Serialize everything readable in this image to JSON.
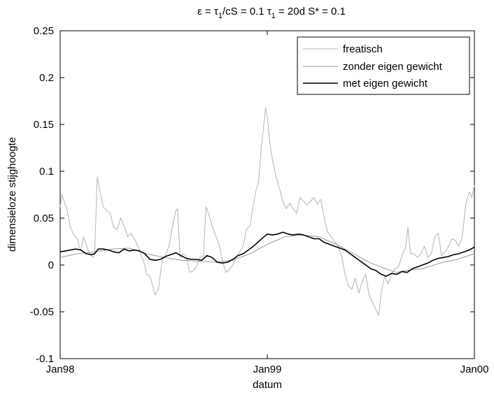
{
  "chart_data": {
    "type": "line",
    "title_parts": {
      "eps": "ε = τ",
      "eps_sub": "1",
      "eps_rest": "/cS = 0.1   τ",
      "tau_sub": "1",
      "tau_rest": " = 20d   S* = 0.1"
    },
    "xlabel": "datum",
    "ylabel": "dimensieloze stijghoogte",
    "x_ticks": [
      "Jan98",
      "Jan99",
      "Jan00"
    ],
    "xlim": [
      0,
      24
    ],
    "ylim": [
      -0.1,
      0.25
    ],
    "y_ticks": [
      -0.1,
      -0.05,
      0,
      0.05,
      0.1,
      0.15,
      0.2,
      0.25
    ],
    "y_tick_labels": [
      "-0.1",
      "-0.05",
      "0",
      "0.05",
      "0.1",
      "0.15",
      "0.2",
      "0.25"
    ],
    "x_unit": "months since Jan98",
    "grid": false,
    "legend_position": "top-right",
    "series": [
      {
        "name": "freatisch",
        "color": "#b4b4b4",
        "points": [
          [
            0.0,
            0.062
          ],
          [
            0.1,
            0.075
          ],
          [
            0.2,
            0.07
          ],
          [
            0.4,
            0.058
          ],
          [
            0.6,
            0.04
          ],
          [
            0.8,
            0.032
          ],
          [
            1.0,
            0.028
          ],
          [
            1.1,
            0.02
          ],
          [
            1.2,
            0.015
          ],
          [
            1.35,
            0.03
          ],
          [
            1.5,
            0.022
          ],
          [
            1.7,
            0.012
          ],
          [
            1.9,
            0.008
          ],
          [
            2.0,
            0.012
          ],
          [
            2.15,
            0.094
          ],
          [
            2.3,
            0.08
          ],
          [
            2.5,
            0.062
          ],
          [
            2.7,
            0.058
          ],
          [
            2.9,
            0.055
          ],
          [
            3.1,
            0.04
          ],
          [
            3.3,
            0.038
          ],
          [
            3.5,
            0.05
          ],
          [
            3.7,
            0.042
          ],
          [
            3.9,
            0.03
          ],
          [
            4.1,
            0.034
          ],
          [
            4.3,
            0.028
          ],
          [
            4.5,
            0.02
          ],
          [
            4.7,
            0.01
          ],
          [
            4.9,
            0.0
          ],
          [
            5.0,
            -0.01
          ],
          [
            5.2,
            -0.012
          ],
          [
            5.3,
            -0.018
          ],
          [
            5.5,
            -0.032
          ],
          [
            5.7,
            -0.025
          ],
          [
            5.9,
            0.004
          ],
          [
            6.1,
            0.01
          ],
          [
            6.3,
            0.02
          ],
          [
            6.5,
            0.04
          ],
          [
            6.7,
            0.058
          ],
          [
            6.8,
            0.06
          ],
          [
            6.95,
            0.008
          ],
          [
            7.1,
            0.012
          ],
          [
            7.3,
            0.01
          ],
          [
            7.5,
            -0.008
          ],
          [
            7.7,
            -0.006
          ],
          [
            7.9,
            -0.002
          ],
          [
            8.1,
            0.008
          ],
          [
            8.3,
            0.01
          ],
          [
            8.45,
            0.062
          ],
          [
            8.6,
            0.055
          ],
          [
            8.8,
            0.042
          ],
          [
            9.0,
            0.032
          ],
          [
            9.2,
            0.022
          ],
          [
            9.4,
            0.005
          ],
          [
            9.6,
            -0.008
          ],
          [
            9.8,
            -0.005
          ],
          [
            10.0,
            0.0
          ],
          [
            10.2,
            0.008
          ],
          [
            10.4,
            0.014
          ],
          [
            10.6,
            0.02
          ],
          [
            10.8,
            0.038
          ],
          [
            11.0,
            0.042
          ],
          [
            11.2,
            0.065
          ],
          [
            11.35,
            0.08
          ],
          [
            11.5,
            0.09
          ],
          [
            11.65,
            0.125
          ],
          [
            11.8,
            0.15
          ],
          [
            11.9,
            0.168
          ],
          [
            12.0,
            0.158
          ],
          [
            12.15,
            0.13
          ],
          [
            12.3,
            0.112
          ],
          [
            12.5,
            0.095
          ],
          [
            12.7,
            0.082
          ],
          [
            12.9,
            0.068
          ],
          [
            13.1,
            0.06
          ],
          [
            13.3,
            0.066
          ],
          [
            13.5,
            0.06
          ],
          [
            13.7,
            0.055
          ],
          [
            13.9,
            0.072
          ],
          [
            14.1,
            0.068
          ],
          [
            14.3,
            0.064
          ],
          [
            14.5,
            0.068
          ],
          [
            14.7,
            0.072
          ],
          [
            14.9,
            0.065
          ],
          [
            15.1,
            0.07
          ],
          [
            15.3,
            0.05
          ],
          [
            15.5,
            0.035
          ],
          [
            15.7,
            0.03
          ],
          [
            15.9,
            0.025
          ],
          [
            16.1,
            0.02
          ],
          [
            16.3,
            0.01
          ],
          [
            16.5,
            -0.01
          ],
          [
            16.7,
            -0.022
          ],
          [
            16.9,
            -0.026
          ],
          [
            17.1,
            -0.014
          ],
          [
            17.3,
            -0.03
          ],
          [
            17.5,
            -0.018
          ],
          [
            17.7,
            -0.01
          ],
          [
            17.9,
            -0.032
          ],
          [
            18.1,
            -0.04
          ],
          [
            18.3,
            -0.048
          ],
          [
            18.45,
            -0.054
          ],
          [
            18.6,
            -0.03
          ],
          [
            18.8,
            -0.012
          ],
          [
            19.0,
            -0.02
          ],
          [
            19.2,
            -0.01
          ],
          [
            19.4,
            -0.004
          ],
          [
            19.6,
            -0.002
          ],
          [
            19.8,
            0.01
          ],
          [
            20.0,
            0.018
          ],
          [
            20.15,
            0.04
          ],
          [
            20.3,
            0.012
          ],
          [
            20.5,
            0.012
          ],
          [
            20.7,
            0.008
          ],
          [
            20.9,
            0.012
          ],
          [
            21.1,
            0.02
          ],
          [
            21.3,
            0.008
          ],
          [
            21.5,
            0.012
          ],
          [
            21.7,
            0.03
          ],
          [
            21.9,
            0.034
          ],
          [
            22.1,
            0.01
          ],
          [
            22.3,
            0.014
          ],
          [
            22.5,
            0.02
          ],
          [
            22.7,
            0.028
          ],
          [
            22.9,
            0.026
          ],
          [
            23.1,
            0.02
          ],
          [
            23.3,
            0.03
          ],
          [
            23.5,
            0.065
          ],
          [
            23.7,
            0.078
          ],
          [
            23.85,
            0.072
          ],
          [
            24.0,
            0.085
          ]
        ]
      },
      {
        "name": "zonder eigen gewicht",
        "color": "#9a9a9a",
        "points": [
          [
            0.0,
            0.008
          ],
          [
            1.0,
            0.012
          ],
          [
            2.0,
            0.014
          ],
          [
            3.0,
            0.017
          ],
          [
            4.0,
            0.018
          ],
          [
            5.0,
            0.012
          ],
          [
            6.0,
            0.008
          ],
          [
            7.0,
            0.005
          ],
          [
            8.0,
            0.004
          ],
          [
            9.0,
            0.003
          ],
          [
            10.0,
            0.005
          ],
          [
            11.0,
            0.012
          ],
          [
            12.0,
            0.022
          ],
          [
            13.0,
            0.03
          ],
          [
            14.0,
            0.032
          ],
          [
            15.0,
            0.03
          ],
          [
            16.0,
            0.022
          ],
          [
            17.0,
            0.012
          ],
          [
            18.0,
            0.002
          ],
          [
            19.0,
            -0.005
          ],
          [
            19.5,
            -0.008
          ],
          [
            20.0,
            -0.006
          ],
          [
            21.0,
            -0.004
          ],
          [
            22.0,
            0.002
          ],
          [
            23.0,
            0.006
          ],
          [
            24.0,
            0.012
          ]
        ]
      },
      {
        "name": "met eigen gewicht",
        "color": "#000000",
        "points": [
          [
            0.0,
            0.014
          ],
          [
            0.3,
            0.015
          ],
          [
            0.6,
            0.016
          ],
          [
            0.9,
            0.017
          ],
          [
            1.2,
            0.016
          ],
          [
            1.5,
            0.012
          ],
          [
            1.8,
            0.011
          ],
          [
            2.0,
            0.012
          ],
          [
            2.2,
            0.017
          ],
          [
            2.5,
            0.017
          ],
          [
            2.8,
            0.016
          ],
          [
            3.1,
            0.014
          ],
          [
            3.4,
            0.013
          ],
          [
            3.7,
            0.017
          ],
          [
            4.0,
            0.015
          ],
          [
            4.3,
            0.016
          ],
          [
            4.6,
            0.015
          ],
          [
            4.9,
            0.012
          ],
          [
            5.2,
            0.006
          ],
          [
            5.5,
            0.005
          ],
          [
            5.8,
            0.006
          ],
          [
            6.1,
            0.009
          ],
          [
            6.4,
            0.011
          ],
          [
            6.7,
            0.013
          ],
          [
            7.0,
            0.01
          ],
          [
            7.3,
            0.007
          ],
          [
            7.6,
            0.006
          ],
          [
            7.9,
            0.006
          ],
          [
            8.2,
            0.005
          ],
          [
            8.5,
            0.01
          ],
          [
            8.8,
            0.008
          ],
          [
            9.1,
            0.003
          ],
          [
            9.4,
            0.002
          ],
          [
            9.7,
            0.003
          ],
          [
            10.0,
            0.006
          ],
          [
            10.3,
            0.01
          ],
          [
            10.6,
            0.012
          ],
          [
            10.9,
            0.016
          ],
          [
            11.2,
            0.02
          ],
          [
            11.5,
            0.025
          ],
          [
            11.8,
            0.03
          ],
          [
            12.0,
            0.033
          ],
          [
            12.3,
            0.032
          ],
          [
            12.6,
            0.033
          ],
          [
            12.9,
            0.035
          ],
          [
            13.2,
            0.033
          ],
          [
            13.5,
            0.032
          ],
          [
            13.8,
            0.033
          ],
          [
            14.1,
            0.032
          ],
          [
            14.4,
            0.03
          ],
          [
            14.7,
            0.028
          ],
          [
            15.0,
            0.028
          ],
          [
            15.3,
            0.024
          ],
          [
            15.6,
            0.022
          ],
          [
            15.9,
            0.02
          ],
          [
            16.2,
            0.018
          ],
          [
            16.5,
            0.016
          ],
          [
            16.8,
            0.012
          ],
          [
            17.1,
            0.008
          ],
          [
            17.4,
            0.004
          ],
          [
            17.7,
            0.0
          ],
          [
            18.0,
            -0.004
          ],
          [
            18.3,
            -0.006
          ],
          [
            18.6,
            -0.01
          ],
          [
            18.9,
            -0.012
          ],
          [
            19.2,
            -0.009
          ],
          [
            19.5,
            -0.01
          ],
          [
            19.8,
            -0.007
          ],
          [
            20.1,
            -0.008
          ],
          [
            20.4,
            -0.004
          ],
          [
            20.7,
            -0.002
          ],
          [
            21.0,
            0.0
          ],
          [
            21.3,
            0.002
          ],
          [
            21.6,
            0.005
          ],
          [
            21.9,
            0.007
          ],
          [
            22.2,
            0.008
          ],
          [
            22.5,
            0.009
          ],
          [
            22.8,
            0.011
          ],
          [
            23.1,
            0.012
          ],
          [
            23.4,
            0.014
          ],
          [
            23.7,
            0.016
          ],
          [
            24.0,
            0.019
          ]
        ]
      }
    ]
  }
}
